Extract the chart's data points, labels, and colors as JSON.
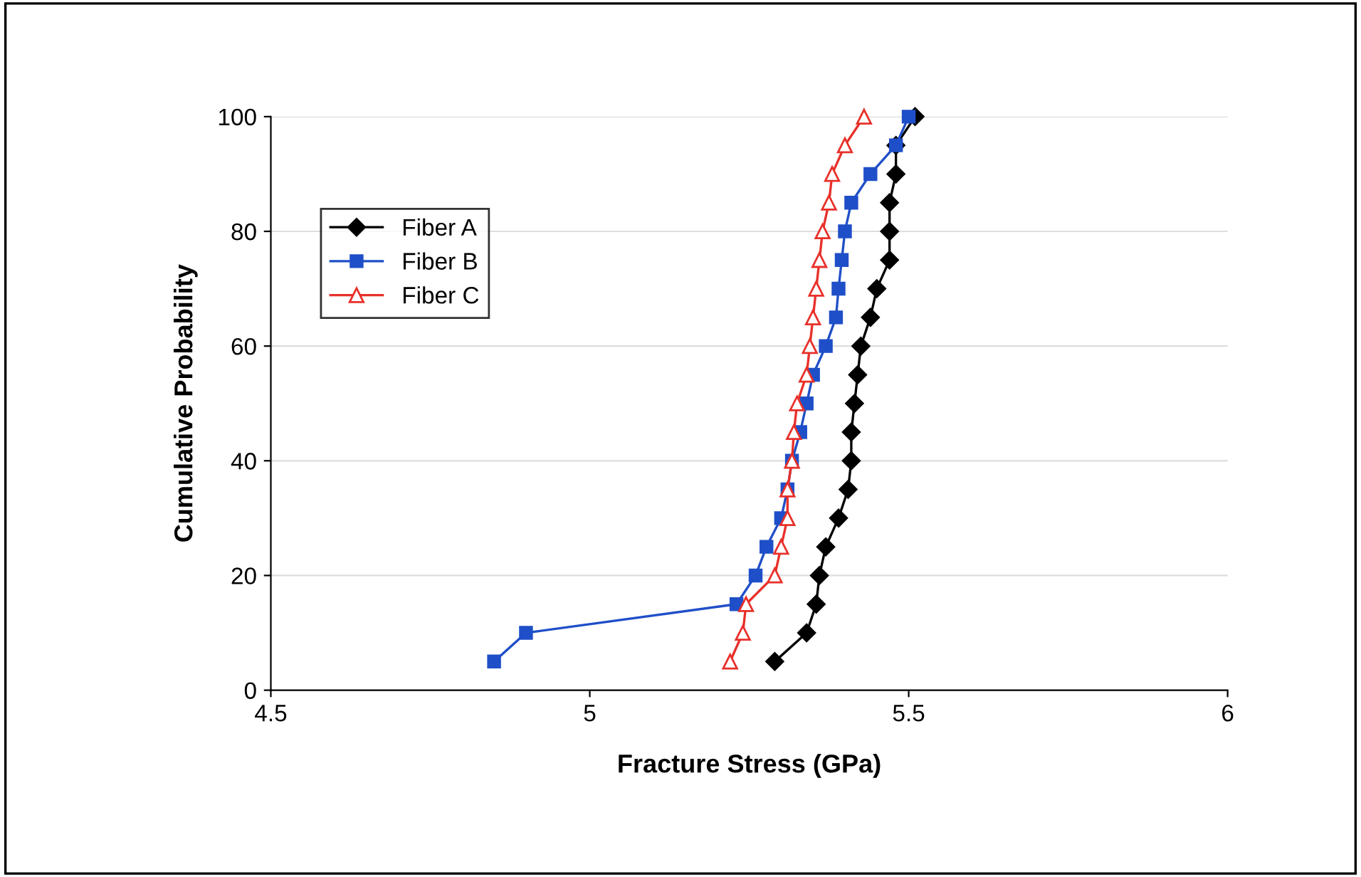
{
  "chart_data": {
    "type": "line",
    "xlabel": "Fracture Stress (GPa)",
    "ylabel": "Cumulative Probability",
    "xlim": [
      4.5,
      6
    ],
    "xticks": [
      4.5,
      5,
      5.5,
      6
    ],
    "ylim": [
      0,
      100
    ],
    "yticks": [
      0,
      20,
      40,
      60,
      80,
      100
    ],
    "grid": "y",
    "legend": "top left",
    "series": [
      {
        "name": "Fiber A",
        "color": "#000000",
        "marker": "diamond",
        "x": [
          5.29,
          5.34,
          5.355,
          5.36,
          5.37,
          5.39,
          5.405,
          5.41,
          5.41,
          5.415,
          5.42,
          5.425,
          5.44,
          5.45,
          5.47,
          5.47,
          5.47,
          5.48,
          5.48,
          5.51
        ],
        "values": [
          5,
          10,
          15,
          20,
          25,
          30,
          35,
          40,
          45,
          50,
          55,
          60,
          65,
          70,
          75,
          80,
          85,
          90,
          95,
          100
        ]
      },
      {
        "name": "Fiber B",
        "color": "#1f4fc8",
        "marker": "square",
        "x": [
          4.85,
          4.9,
          5.23,
          5.26,
          5.277,
          5.3,
          5.31,
          5.317,
          5.33,
          5.34,
          5.35,
          5.37,
          5.386,
          5.39,
          5.395,
          5.4,
          5.41,
          5.44,
          5.48,
          5.5
        ],
        "values": [
          5,
          10,
          15,
          20,
          25,
          30,
          35,
          40,
          45,
          50,
          55,
          60,
          65,
          70,
          75,
          80,
          85,
          90,
          95,
          100
        ]
      },
      {
        "name": "Fiber C",
        "color": "#e8302a",
        "marker": "triangle",
        "x": [
          5.22,
          5.24,
          5.245,
          5.29,
          5.3,
          5.31,
          5.31,
          5.317,
          5.32,
          5.325,
          5.34,
          5.345,
          5.35,
          5.355,
          5.36,
          5.365,
          5.375,
          5.38,
          5.4,
          5.43
        ],
        "values": [
          5,
          10,
          15,
          20,
          25,
          30,
          35,
          40,
          45,
          50,
          55,
          60,
          65,
          70,
          75,
          80,
          85,
          90,
          95,
          100
        ]
      }
    ]
  }
}
